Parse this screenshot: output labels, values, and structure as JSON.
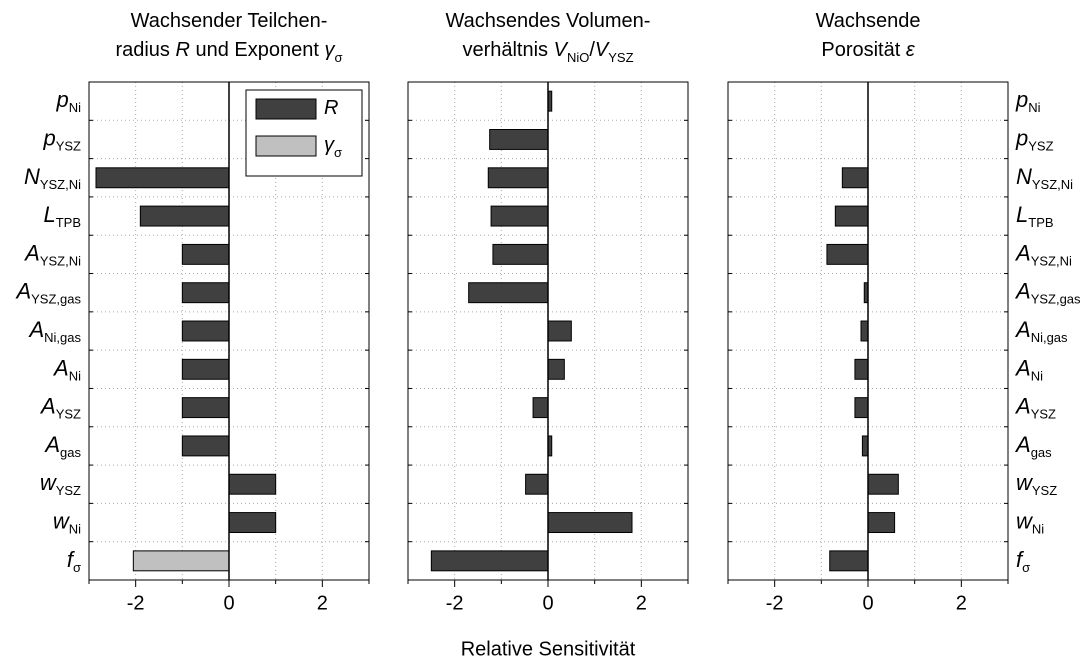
{
  "figure": {
    "xlabel": "Relative Sensitivität"
  },
  "chart_data": [
    {
      "type": "barh",
      "title": [
        [
          {
            "text": "Wachsender Teilchen-"
          }
        ],
        [
          {
            "text": "radius "
          },
          {
            "text": "R",
            "style": "italic"
          },
          {
            "text": " und Exponent "
          },
          {
            "text": "γ",
            "style": "italic"
          },
          {
            "text": "σ",
            "style": "sub"
          }
        ]
      ],
      "categories": [
        {
          "symbol": "p",
          "sub": "Ni"
        },
        {
          "symbol": "p",
          "sub": "YSZ"
        },
        {
          "symbol": "N",
          "sub": "YSZ,Ni"
        },
        {
          "symbol": "L",
          "sub": "TPB"
        },
        {
          "symbol": "A",
          "sub": "YSZ,Ni"
        },
        {
          "symbol": "A",
          "sub": "YSZ,gas"
        },
        {
          "symbol": "A",
          "sub": "Ni,gas"
        },
        {
          "symbol": "A",
          "sub": "Ni"
        },
        {
          "symbol": "A",
          "sub": "YSZ"
        },
        {
          "symbol": "A",
          "sub": "gas"
        },
        {
          "symbol": "w",
          "sub": "YSZ"
        },
        {
          "symbol": "w",
          "sub": "Ni"
        },
        {
          "symbol": "f",
          "sub": "σ"
        }
      ],
      "labels_side": "left",
      "series": [
        {
          "name": [
            {
              "text": "R",
              "style": "italic"
            }
          ],
          "color": "#404040",
          "values": [
            0,
            0,
            -2.85,
            -1.9,
            -1,
            -1,
            -1,
            -1,
            -1,
            -1,
            1,
            1,
            null
          ]
        },
        {
          "name": [
            {
              "text": "γ",
              "style": "italic"
            },
            {
              "text": "σ",
              "style": "sub"
            }
          ],
          "color": "#c0c0c0",
          "values": [
            null,
            null,
            null,
            null,
            null,
            null,
            null,
            null,
            null,
            null,
            null,
            null,
            -2.05
          ]
        }
      ],
      "legend": "upper right",
      "xlim": [
        -3,
        3
      ],
      "xticks": [
        -2,
        0,
        2
      ],
      "xminor": [
        -3,
        -1,
        1,
        3
      ],
      "grid": true
    },
    {
      "type": "barh",
      "title": [
        [
          {
            "text": "Wachsendes Volumen-"
          }
        ],
        [
          {
            "text": "verhältnis "
          },
          {
            "text": "V",
            "style": "italic"
          },
          {
            "text": "NiO",
            "style": "sub"
          },
          {
            "text": "/"
          },
          {
            "text": "V",
            "style": "italic"
          },
          {
            "text": "YSZ",
            "style": "sub"
          }
        ]
      ],
      "series": [
        {
          "color": "#404040",
          "values": [
            0.08,
            -1.25,
            -1.28,
            -1.22,
            -1.18,
            -1.7,
            0.5,
            0.35,
            -0.32,
            0.08,
            -0.48,
            1.8,
            -2.5
          ]
        }
      ],
      "xlim": [
        -3,
        3
      ],
      "xticks": [
        -2,
        0,
        2
      ],
      "xminor": [
        -3,
        -1,
        1,
        3
      ],
      "grid": true
    },
    {
      "type": "barh",
      "title": [
        [
          {
            "text": "Wachsende"
          }
        ],
        [
          {
            "text": "Porosität "
          },
          {
            "text": "ε",
            "style": "italic"
          }
        ]
      ],
      "categories": [
        {
          "symbol": "p",
          "sub": "Ni"
        },
        {
          "symbol": "p",
          "sub": "YSZ"
        },
        {
          "symbol": "N",
          "sub": "YSZ,Ni"
        },
        {
          "symbol": "L",
          "sub": "TPB"
        },
        {
          "symbol": "A",
          "sub": "YSZ,Ni"
        },
        {
          "symbol": "A",
          "sub": "YSZ,gas"
        },
        {
          "symbol": "A",
          "sub": "Ni,gas"
        },
        {
          "symbol": "A",
          "sub": "Ni"
        },
        {
          "symbol": "A",
          "sub": "YSZ"
        },
        {
          "symbol": "A",
          "sub": "gas"
        },
        {
          "symbol": "w",
          "sub": "YSZ"
        },
        {
          "symbol": "w",
          "sub": "Ni"
        },
        {
          "symbol": "f",
          "sub": "σ"
        }
      ],
      "labels_side": "right",
      "series": [
        {
          "color": "#404040",
          "values": [
            0,
            0,
            -0.55,
            -0.7,
            -0.88,
            -0.08,
            -0.15,
            -0.28,
            -0.28,
            -0.12,
            0.65,
            0.57,
            -0.82
          ]
        }
      ],
      "xlim": [
        -3,
        3
      ],
      "xticks": [
        -2,
        0,
        2
      ],
      "xminor": [
        -3,
        -1,
        1,
        3
      ],
      "grid": true
    }
  ]
}
